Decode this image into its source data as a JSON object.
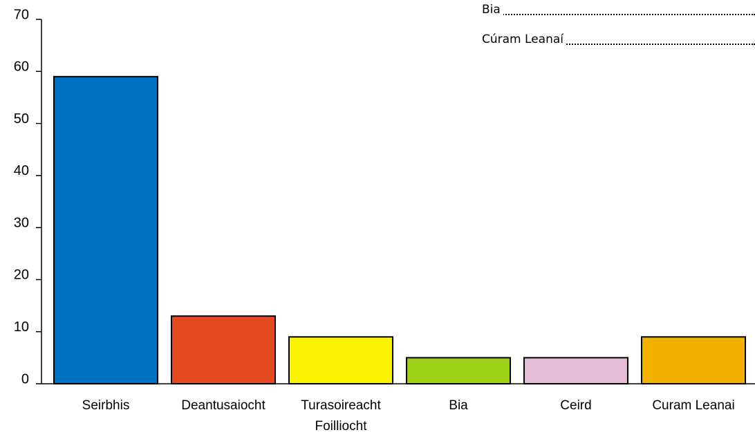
{
  "chart_data": {
    "type": "bar",
    "categories": [
      "Seirbhis",
      "Deantusaiocht",
      "Turasoireacht Foilliocht",
      "Bia",
      "Ceird",
      "Curam Leanai"
    ],
    "values": [
      59,
      13,
      9,
      5,
      5,
      9
    ],
    "colors": [
      "#0070c0",
      "#e34a1f",
      "#f9f200",
      "#9ccf16",
      "#e4bcd6",
      "#f2b000"
    ],
    "ylim": [
      0,
      70
    ],
    "yticks": [
      0,
      10,
      20,
      30,
      40,
      50,
      60,
      70
    ],
    "annotations": [
      "Bia",
      "Cúram Leanaí"
    ]
  }
}
